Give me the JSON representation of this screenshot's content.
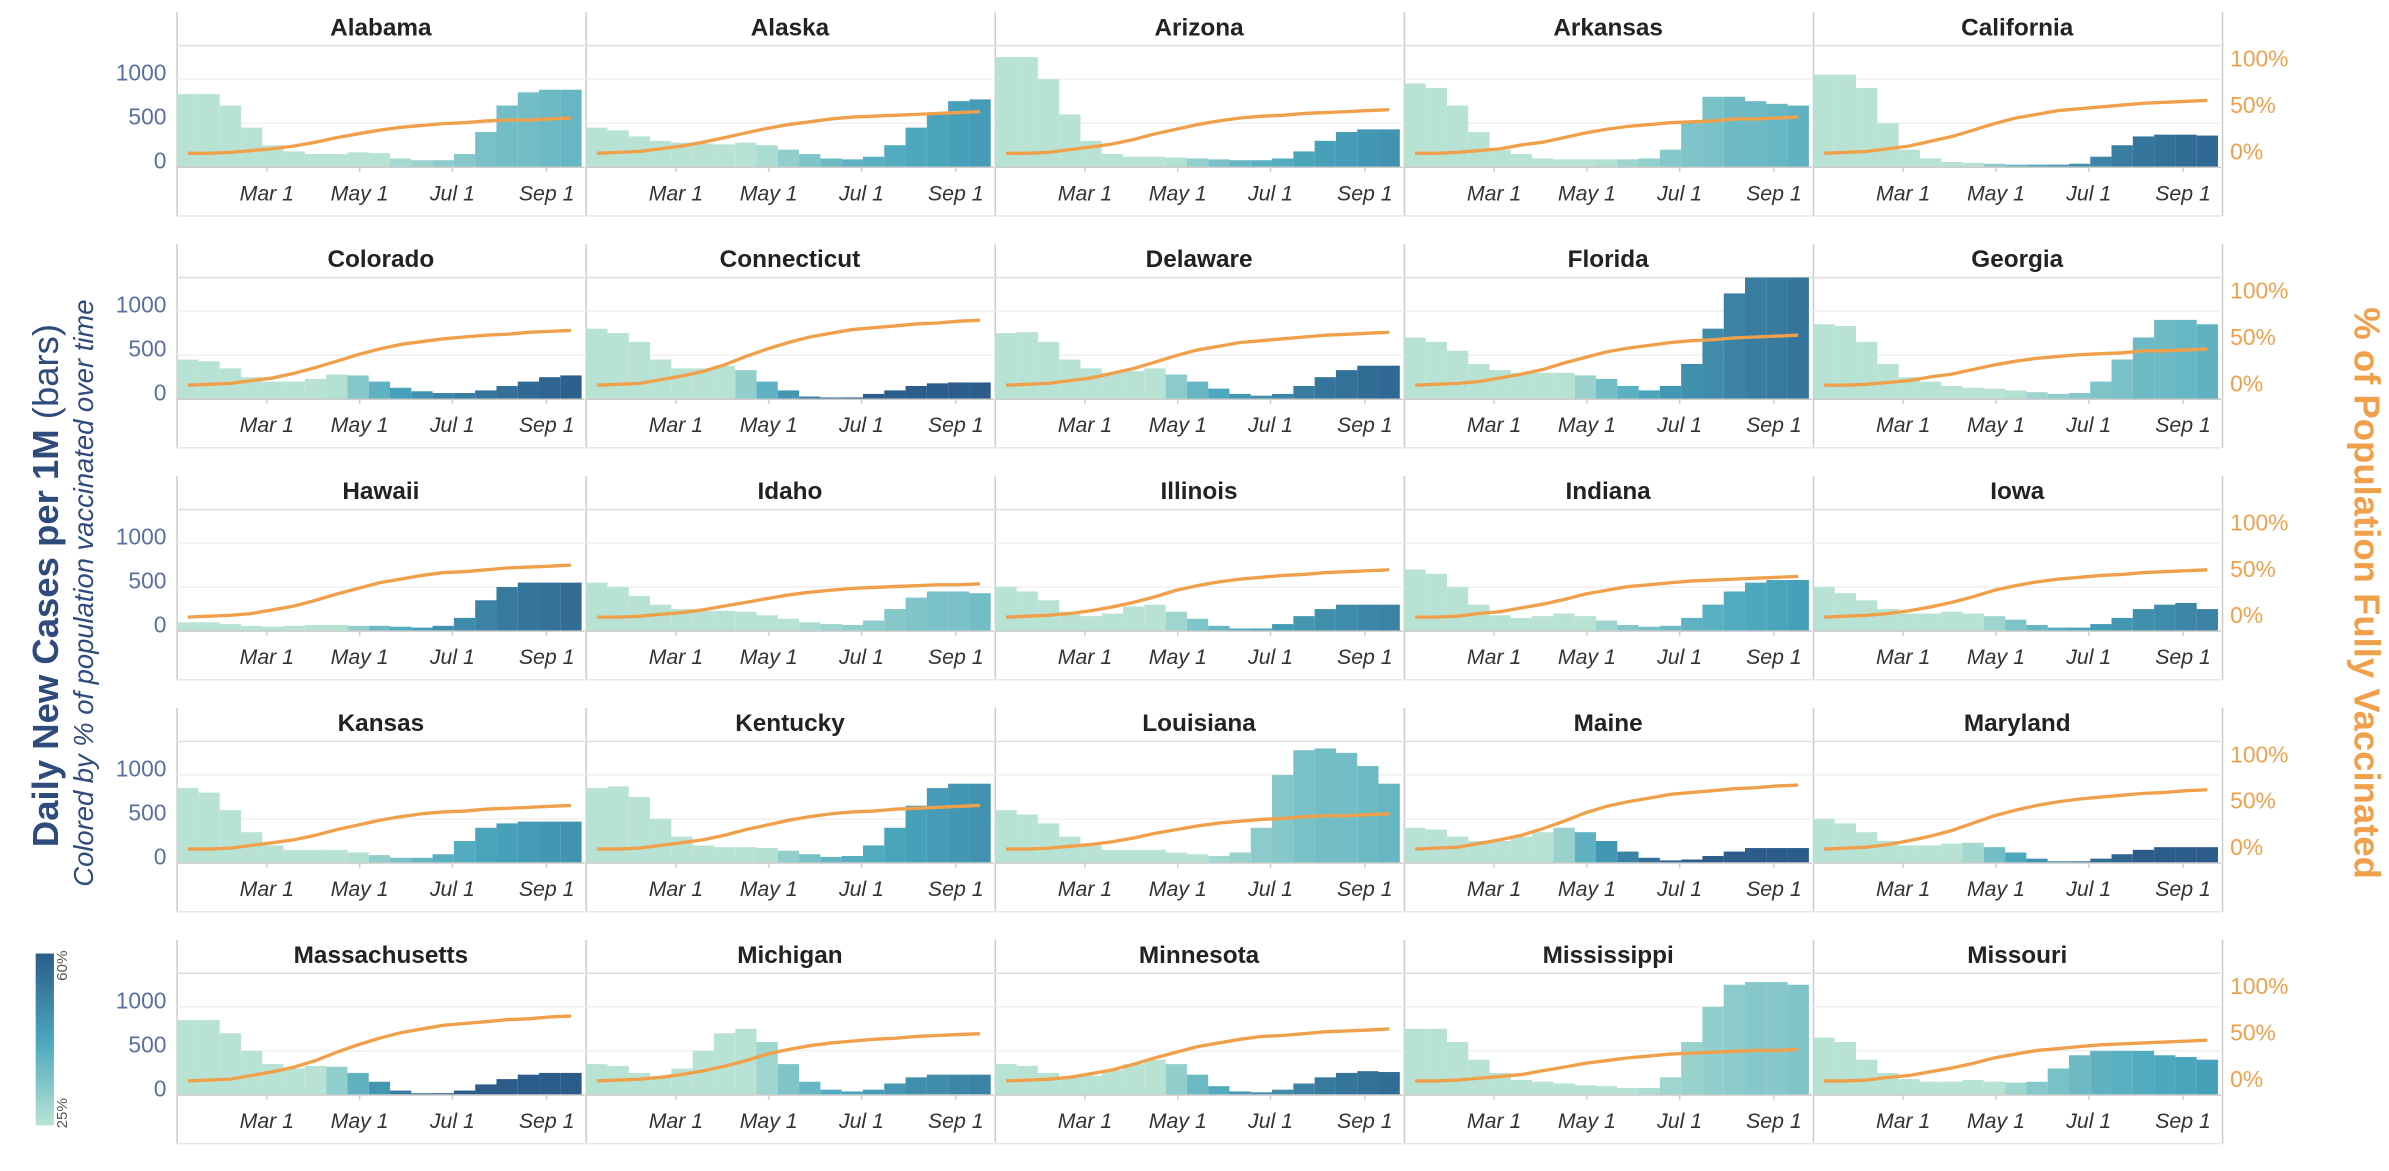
{
  "chart_data": {
    "type": "small_multiples",
    "y_title": "Daily New Cases per 1M",
    "y_title_suffix": "(bars)",
    "y_subtitle": "Colored by % of population vaccinated over time",
    "y2_title": "% of Population Fully Vaccinated",
    "x": [
      7,
      21,
      35,
      49,
      63,
      77,
      91,
      105,
      119,
      133,
      147,
      161,
      175,
      189,
      203,
      217,
      231,
      245,
      259
    ],
    "xlim": [
      0,
      268
    ],
    "xticks": [
      {
        "value": 59,
        "label": "Mar 1"
      },
      {
        "value": 120,
        "label": "May 1"
      },
      {
        "value": 181,
        "label": "Jul 1"
      },
      {
        "value": 243,
        "label": "Sep 1"
      }
    ],
    "ylim": [
      0,
      1380
    ],
    "yticks": [
      0,
      500,
      1000
    ],
    "y2lim": [
      -15,
      116
    ],
    "y2ticks": [
      {
        "value": 0,
        "label": "0%"
      },
      {
        "value": 50,
        "label": "50%"
      },
      {
        "value": 100,
        "label": "100%"
      }
    ],
    "line_color": "#f0a04b",
    "colorbar": {
      "colors": [
        "#b8e3d4",
        "#4aa6bd",
        "#2b5c8a"
      ],
      "ticks": [
        {
          "value": 25,
          "label": "25%"
        },
        {
          "value": 60,
          "label": "60%"
        }
      ]
    },
    "panels": [
      {
        "title": "Alabama",
        "values": [
          830,
          830,
          700,
          450,
          250,
          180,
          150,
          150,
          170,
          160,
          100,
          80,
          80,
          150,
          400,
          700,
          850,
          880,
          880
        ],
        "vax": [
          0,
          0,
          1,
          3,
          5,
          8,
          12,
          17,
          21,
          25,
          28,
          30,
          32,
          33,
          35,
          36,
          36,
          37,
          38
        ]
      },
      {
        "title": "Alaska",
        "values": [
          450,
          420,
          350,
          300,
          280,
          270,
          260,
          280,
          250,
          200,
          150,
          100,
          90,
          120,
          250,
          450,
          600,
          750,
          770
        ],
        "vax": [
          0,
          1,
          2,
          5,
          8,
          12,
          17,
          22,
          27,
          31,
          34,
          37,
          39,
          40,
          41,
          42,
          43,
          44,
          45
        ]
      },
      {
        "title": "Arizona",
        "values": [
          1250,
          1250,
          1000,
          600,
          300,
          150,
          120,
          120,
          110,
          100,
          90,
          80,
          80,
          100,
          180,
          300,
          400,
          430,
          430
        ],
        "vax": [
          0,
          0,
          1,
          4,
          7,
          10,
          15,
          21,
          26,
          31,
          35,
          38,
          40,
          41,
          43,
          44,
          45,
          46,
          47
        ]
      },
      {
        "title": "Arkansas",
        "values": [
          950,
          900,
          700,
          400,
          200,
          150,
          100,
          90,
          90,
          90,
          90,
          100,
          200,
          500,
          800,
          800,
          750,
          720,
          700
        ],
        "vax": [
          0,
          0,
          1,
          3,
          5,
          9,
          12,
          17,
          22,
          26,
          29,
          31,
          33,
          34,
          35,
          37,
          37,
          38,
          39
        ]
      },
      {
        "title": "California",
        "values": [
          1050,
          1050,
          900,
          500,
          200,
          100,
          60,
          50,
          40,
          30,
          30,
          30,
          40,
          120,
          250,
          350,
          370,
          370,
          360
        ],
        "vax": [
          0,
          1,
          2,
          5,
          8,
          13,
          18,
          25,
          32,
          38,
          42,
          46,
          48,
          50,
          52,
          54,
          55,
          56,
          57
        ]
      },
      {
        "title": "Colorado",
        "values": [
          450,
          430,
          350,
          250,
          200,
          200,
          230,
          280,
          270,
          200,
          130,
          90,
          70,
          70,
          100,
          150,
          200,
          250,
          270
        ],
        "vax": [
          0,
          1,
          2,
          5,
          8,
          13,
          19,
          26,
          33,
          39,
          44,
          47,
          50,
          52,
          54,
          55,
          57,
          58,
          59
        ]
      },
      {
        "title": "Connecticut",
        "values": [
          800,
          750,
          650,
          450,
          350,
          350,
          380,
          330,
          200,
          100,
          30,
          20,
          20,
          60,
          100,
          150,
          180,
          190,
          190
        ],
        "vax": [
          0,
          1,
          2,
          6,
          10,
          15,
          22,
          31,
          39,
          46,
          52,
          56,
          60,
          62,
          64,
          66,
          67,
          69,
          70
        ]
      },
      {
        "title": "Delaware",
        "values": [
          750,
          760,
          650,
          450,
          350,
          300,
          320,
          350,
          280,
          200,
          120,
          60,
          40,
          60,
          150,
          250,
          330,
          380,
          380
        ],
        "vax": [
          0,
          1,
          2,
          5,
          8,
          13,
          18,
          25,
          32,
          38,
          42,
          46,
          48,
          50,
          52,
          54,
          55,
          56,
          57
        ]
      },
      {
        "title": "Florida",
        "values": [
          700,
          650,
          550,
          400,
          330,
          300,
          300,
          300,
          270,
          230,
          150,
          100,
          150,
          400,
          800,
          1200,
          1380,
          1380,
          1380
        ],
        "vax": [
          0,
          1,
          2,
          4,
          8,
          12,
          17,
          24,
          30,
          36,
          40,
          43,
          46,
          48,
          49,
          51,
          52,
          53,
          54
        ]
      },
      {
        "title": "Georgia",
        "values": [
          850,
          830,
          650,
          400,
          250,
          200,
          150,
          130,
          120,
          100,
          80,
          60,
          70,
          200,
          450,
          700,
          900,
          900,
          850
        ],
        "vax": [
          0,
          0,
          1,
          3,
          5,
          9,
          12,
          17,
          22,
          26,
          29,
          31,
          33,
          34,
          35,
          37,
          37,
          38,
          39
        ]
      },
      {
        "title": "Hawaii",
        "values": [
          100,
          100,
          80,
          60,
          50,
          60,
          70,
          70,
          60,
          60,
          50,
          40,
          60,
          150,
          350,
          500,
          550,
          550,
          550
        ],
        "vax": [
          0,
          1,
          2,
          4,
          8,
          12,
          18,
          25,
          31,
          37,
          41,
          45,
          48,
          49,
          51,
          53,
          54,
          55,
          56
        ]
      },
      {
        "title": "Idaho",
        "values": [
          550,
          500,
          400,
          300,
          250,
          230,
          230,
          220,
          180,
          140,
          100,
          80,
          70,
          120,
          250,
          380,
          450,
          450,
          430
        ],
        "vax": [
          0,
          0,
          1,
          3,
          5,
          8,
          12,
          16,
          20,
          24,
          27,
          29,
          31,
          32,
          33,
          34,
          35,
          35,
          36
        ]
      },
      {
        "title": "Illinois",
        "values": [
          500,
          450,
          350,
          220,
          170,
          200,
          280,
          300,
          220,
          140,
          60,
          30,
          30,
          80,
          170,
          250,
          300,
          300,
          300
        ],
        "vax": [
          0,
          1,
          2,
          4,
          7,
          11,
          16,
          22,
          29,
          34,
          38,
          41,
          43,
          45,
          46,
          48,
          49,
          50,
          51
        ]
      },
      {
        "title": "Indiana",
        "values": [
          700,
          650,
          500,
          300,
          180,
          150,
          170,
          200,
          170,
          120,
          70,
          50,
          60,
          150,
          300,
          450,
          550,
          580,
          580
        ],
        "vax": [
          0,
          0,
          1,
          4,
          6,
          10,
          14,
          19,
          25,
          29,
          33,
          35,
          37,
          39,
          40,
          41,
          42,
          43,
          44
        ]
      },
      {
        "title": "Iowa",
        "values": [
          500,
          430,
          350,
          250,
          200,
          200,
          220,
          200,
          170,
          130,
          70,
          40,
          40,
          80,
          150,
          250,
          300,
          320,
          250
        ],
        "vax": [
          0,
          1,
          2,
          4,
          7,
          11,
          16,
          22,
          29,
          34,
          38,
          41,
          43,
          45,
          46,
          48,
          49,
          50,
          51
        ]
      },
      {
        "title": "Kansas",
        "values": [
          850,
          800,
          600,
          350,
          200,
          150,
          150,
          150,
          120,
          90,
          60,
          60,
          100,
          250,
          400,
          450,
          470,
          470,
          470
        ],
        "vax": [
          0,
          0,
          1,
          4,
          7,
          10,
          15,
          21,
          26,
          31,
          35,
          38,
          40,
          41,
          43,
          44,
          45,
          46,
          47
        ]
      },
      {
        "title": "Kentucky",
        "values": [
          850,
          870,
          750,
          500,
          300,
          200,
          180,
          180,
          170,
          140,
          100,
          70,
          80,
          200,
          400,
          650,
          850,
          900,
          900
        ],
        "vax": [
          0,
          0,
          1,
          4,
          7,
          10,
          15,
          21,
          26,
          31,
          35,
          38,
          40,
          41,
          43,
          44,
          45,
          46,
          47
        ]
      },
      {
        "title": "Louisiana",
        "values": [
          600,
          550,
          450,
          300,
          200,
          150,
          150,
          150,
          120,
          100,
          80,
          120,
          400,
          1000,
          1280,
          1300,
          1250,
          1100,
          900
        ],
        "vax": [
          0,
          0,
          1,
          3,
          5,
          8,
          12,
          17,
          21,
          25,
          28,
          30,
          32,
          33,
          35,
          36,
          36,
          37,
          38
        ]
      },
      {
        "title": "Maine",
        "values": [
          400,
          380,
          300,
          250,
          250,
          300,
          350,
          400,
          350,
          250,
          130,
          60,
          30,
          40,
          80,
          130,
          170,
          170,
          170
        ],
        "vax": [
          0,
          1,
          2,
          6,
          10,
          15,
          22,
          30,
          39,
          46,
          51,
          55,
          59,
          61,
          63,
          65,
          66,
          68,
          69
        ]
      },
      {
        "title": "Maryland",
        "values": [
          500,
          450,
          350,
          250,
          200,
          200,
          220,
          230,
          180,
          120,
          50,
          20,
          20,
          50,
          100,
          150,
          180,
          180,
          180
        ],
        "vax": [
          0,
          1,
          2,
          5,
          9,
          14,
          20,
          28,
          36,
          42,
          47,
          51,
          54,
          56,
          58,
          60,
          61,
          63,
          64
        ]
      },
      {
        "title": "Massachusetts",
        "values": [
          850,
          850,
          700,
          500,
          350,
          300,
          330,
          320,
          250,
          150,
          50,
          20,
          20,
          50,
          120,
          180,
          230,
          250,
          250
        ],
        "vax": [
          0,
          1,
          2,
          6,
          10,
          15,
          22,
          31,
          39,
          46,
          52,
          56,
          60,
          62,
          64,
          66,
          67,
          69,
          70
        ]
      },
      {
        "title": "Michigan",
        "values": [
          350,
          330,
          250,
          200,
          300,
          500,
          700,
          750,
          600,
          350,
          150,
          60,
          40,
          60,
          130,
          200,
          230,
          230,
          230
        ],
        "vax": [
          0,
          1,
          2,
          4,
          7,
          11,
          16,
          22,
          29,
          34,
          38,
          41,
          43,
          45,
          46,
          48,
          49,
          50,
          51
        ]
      },
      {
        "title": "Minnesota",
        "values": [
          350,
          330,
          250,
          200,
          220,
          280,
          350,
          400,
          350,
          230,
          100,
          40,
          30,
          60,
          130,
          200,
          250,
          270,
          260
        ],
        "vax": [
          0,
          1,
          2,
          4,
          8,
          12,
          18,
          25,
          31,
          37,
          41,
          45,
          48,
          49,
          51,
          53,
          54,
          55,
          56
        ]
      },
      {
        "title": "Mississippi",
        "values": [
          750,
          750,
          600,
          400,
          250,
          170,
          150,
          130,
          110,
          100,
          80,
          80,
          200,
          600,
          1000,
          1250,
          1280,
          1280,
          1250
        ],
        "vax": [
          0,
          0,
          1,
          3,
          5,
          7,
          11,
          15,
          19,
          22,
          25,
          27,
          29,
          30,
          31,
          32,
          33,
          33,
          34
        ]
      },
      {
        "title": "Missouri",
        "values": [
          650,
          600,
          400,
          250,
          180,
          150,
          150,
          170,
          150,
          140,
          150,
          300,
          450,
          500,
          500,
          500,
          450,
          430,
          400
        ],
        "vax": [
          0,
          0,
          1,
          4,
          6,
          10,
          14,
          19,
          25,
          29,
          33,
          35,
          37,
          39,
          40,
          41,
          42,
          43,
          44
        ]
      }
    ]
  }
}
